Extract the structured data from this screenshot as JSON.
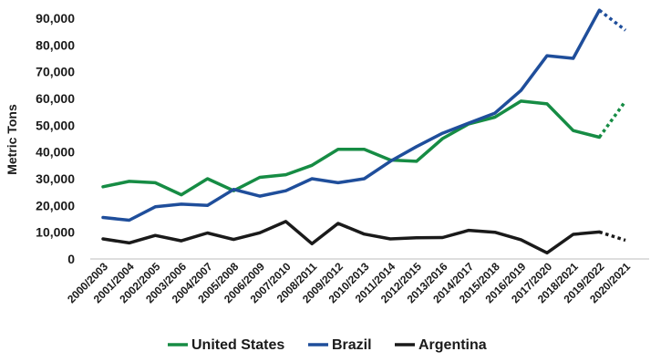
{
  "chart_data": {
    "type": "line",
    "title": "",
    "xlabel": "",
    "ylabel": "Metric Tons",
    "ylim": [
      0,
      90000
    ],
    "y_ticks": [
      "0",
      "10,000",
      "20,000",
      "30,000",
      "40,000",
      "50,000",
      "60,000",
      "70,000",
      "80,000",
      "90,000"
    ],
    "categories": [
      "2000/2003",
      "2001/2004",
      "2002/2005",
      "2003/2006",
      "2004/2007",
      "2005/2008",
      "2006/2009",
      "2007/2010",
      "2008/2011",
      "2009/2012",
      "2010/2013",
      "2011/2014",
      "2012/2015",
      "2013/2016",
      "2014/2017",
      "2015/2018",
      "2016/2019",
      "2017/2020",
      "2018/2021",
      "2019/2022",
      "2020/2021"
    ],
    "legend_position": "bottom",
    "grid": false,
    "series": [
      {
        "name": "United States",
        "color": "#168c44",
        "values": [
          27000,
          29000,
          28500,
          24000,
          30000,
          25500,
          30500,
          31500,
          35000,
          41000,
          41000,
          37000,
          36500,
          45000,
          50500,
          53000,
          59000,
          58000,
          48000,
          45500,
          59000
        ],
        "dotted_from_index": 19
      },
      {
        "name": "Brazil",
        "color": "#1f4e9b",
        "values": [
          15500,
          14500,
          19500,
          20500,
          20000,
          26000,
          23500,
          25500,
          30000,
          28500,
          30000,
          36500,
          42000,
          47000,
          50800,
          54500,
          63000,
          76000,
          75000,
          93000,
          85500
        ],
        "dotted_from_index": 19
      },
      {
        "name": "Argentina",
        "color": "#1a1a1a",
        "values": [
          7500,
          6000,
          8800,
          6800,
          9700,
          7300,
          9800,
          14000,
          5700,
          13300,
          9300,
          7500,
          7900,
          8000,
          10700,
          10000,
          7200,
          2300,
          9200,
          10100,
          7000
        ],
        "dotted_from_index": 19
      }
    ]
  }
}
